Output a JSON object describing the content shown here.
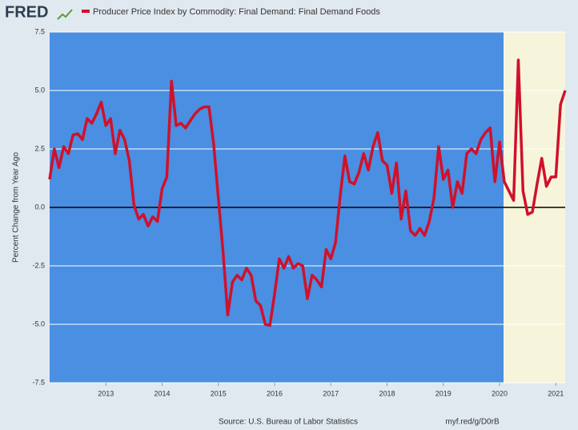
{
  "logo": "FRED",
  "chart_data": {
    "type": "line",
    "y_label": "Percent Change from Year Ago",
    "source": "Source: U.S. Bureau of Labor Statistics",
    "link": "myf.red/g/D0rB",
    "categories": [
      null,
      null,
      null,
      null,
      null,
      null,
      null,
      null,
      null,
      null,
      null,
      null,
      "2013",
      null,
      null,
      null,
      null,
      null,
      null,
      null,
      null,
      null,
      null,
      null,
      "2014",
      null,
      null,
      null,
      null,
      null,
      null,
      null,
      null,
      null,
      null,
      null,
      "2015",
      null,
      null,
      null,
      null,
      null,
      null,
      null,
      null,
      null,
      null,
      null,
      "2016",
      null,
      null,
      null,
      null,
      null,
      null,
      null,
      null,
      null,
      null,
      null,
      "2017",
      null,
      null,
      null,
      null,
      null,
      null,
      null,
      null,
      null,
      null,
      null,
      "2018",
      null,
      null,
      null,
      null,
      null,
      null,
      null,
      null,
      null,
      null,
      null,
      "2019",
      null,
      null,
      null,
      null,
      null,
      null,
      null,
      null,
      null,
      null,
      null,
      "2020",
      null,
      null,
      null,
      null,
      null,
      null,
      null,
      null,
      null,
      null,
      null,
      "2021",
      null,
      null
    ],
    "series": [
      {
        "name": "Producer Price Index by Commodity: Final Demand: Final Demand Foods",
        "color": "#d0112b",
        "values": [
          1.2,
          2.5,
          1.7,
          2.6,
          2.3,
          3.1,
          3.15,
          2.9,
          3.8,
          3.6,
          4.0,
          4.5,
          3.5,
          3.8,
          2.3,
          3.3,
          2.9,
          2.0,
          0.1,
          -0.5,
          -0.3,
          -0.8,
          -0.4,
          -0.6,
          0.8,
          1.3,
          5.4,
          3.5,
          3.6,
          3.4,
          3.7,
          4.0,
          4.2,
          4.3,
          4.3,
          2.7,
          0.4,
          -1.9,
          -4.6,
          -3.2,
          -2.9,
          -3.1,
          -2.6,
          -2.9,
          -4.0,
          -4.2,
          -5.0,
          -5.05,
          -3.7,
          -2.2,
          -2.6,
          -2.1,
          -2.6,
          -2.4,
          -2.5,
          -3.9,
          -2.9,
          -3.1,
          -3.4,
          -1.8,
          -2.2,
          -1.5,
          0.5,
          2.2,
          1.1,
          1.0,
          1.5,
          2.3,
          1.6,
          2.6,
          3.2,
          2.0,
          1.8,
          0.6,
          1.9,
          -0.5,
          0.7,
          -1.0,
          -1.2,
          -0.9,
          -1.2,
          -0.6,
          0.4,
          2.6,
          1.2,
          1.6,
          0.0,
          1.1,
          0.6,
          2.3,
          2.5,
          2.3,
          2.9,
          3.2,
          3.4,
          1.1,
          2.8,
          1.1,
          0.7,
          0.3,
          6.3,
          0.7,
          -0.3,
          -0.2,
          1.0,
          2.1,
          0.9,
          1.3,
          1.3,
          4.4,
          5.0
        ]
      }
    ],
    "ylim": [
      -7.5,
      7.5
    ],
    "yticks": [
      7.5,
      {
        "value": 5,
        "label": "5.0"
      },
      2.5,
      {
        "value": 0,
        "label": "0.0"
      },
      -2.5,
      {
        "value": -5,
        "label": "-5.0"
      },
      -7.5
    ],
    "grid": true
  }
}
